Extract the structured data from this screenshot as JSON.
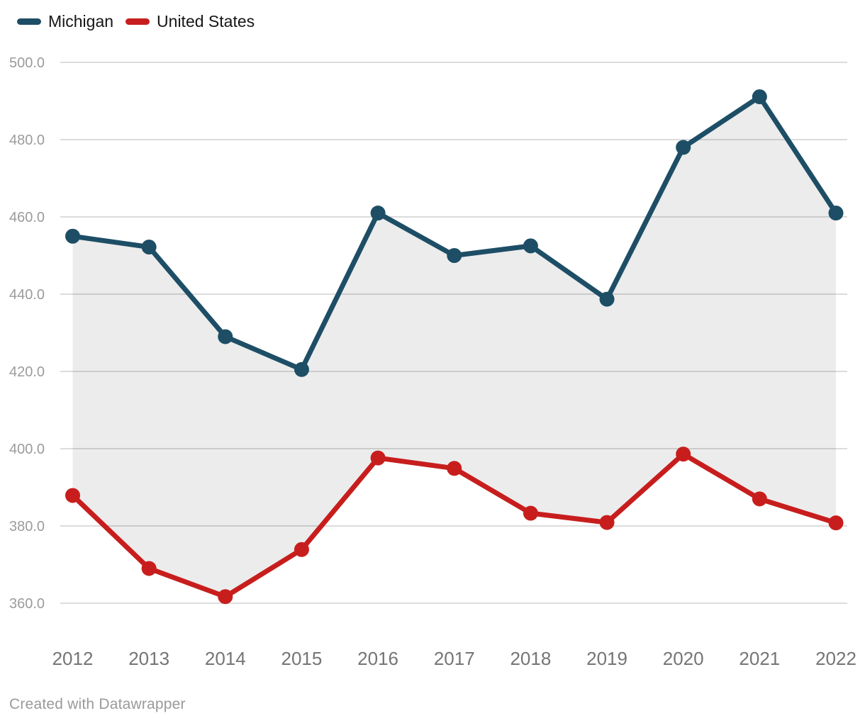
{
  "legend": {
    "items": [
      {
        "label": "Michigan",
        "color": "#1d4e66"
      },
      {
        "label": "United States",
        "color": "#c71e1d"
      }
    ]
  },
  "footer": {
    "text": "Created with Datawrapper"
  },
  "colors": {
    "michigan_line": "#1d4e66",
    "united_states_line": "#c71e1d",
    "gridline": "#dcdcdc",
    "area_fill": "rgba(0,0,0,0.075)",
    "ytick_label": "#9b9b9b",
    "xtick_label": "#757575",
    "background": "#ffffff"
  },
  "chart_data": {
    "type": "line",
    "title": "",
    "xlabel": "",
    "ylabel": "",
    "x": [
      2012,
      2013,
      2014,
      2015,
      2016,
      2017,
      2018,
      2019,
      2020,
      2021,
      2022
    ],
    "series": [
      {
        "name": "Michigan",
        "color": "#1d4e66",
        "values": [
          455.0,
          452.2,
          429.0,
          420.5,
          461.0,
          450.0,
          452.5,
          438.7,
          478.0,
          491.1,
          461.0
        ]
      },
      {
        "name": "United States",
        "color": "#c71e1d",
        "values": [
          387.9,
          369.0,
          361.7,
          373.9,
          397.6,
          394.9,
          383.3,
          380.9,
          398.6,
          387.0,
          380.8
        ]
      }
    ],
    "ylim": [
      360,
      500
    ],
    "yticks": [
      500,
      480,
      460,
      440,
      420,
      400,
      380,
      360
    ],
    "ytick_format": "one_decimal",
    "grid": "horizontal",
    "area_between_series": true,
    "legend_position": "top-left",
    "markers": "filled-circles"
  }
}
